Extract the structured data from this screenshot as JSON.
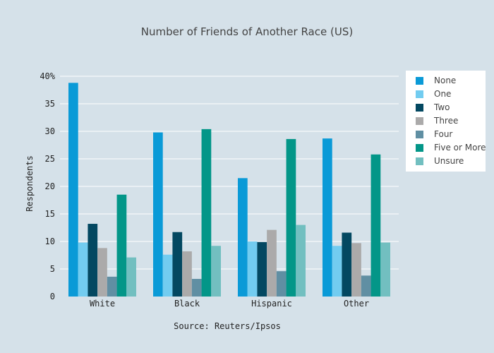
{
  "chart_data": {
    "type": "bar",
    "title": "Number of Friends of Another Race (US)",
    "xlabel": "Source: Reuters/Ipsos",
    "ylabel": "Respondents",
    "categories": [
      "White",
      "Black",
      "Hispanic",
      "Other"
    ],
    "ylim": [
      0,
      40
    ],
    "yticks": [
      {
        "value": 0,
        "label": "0"
      },
      {
        "value": 5,
        "label": "5"
      },
      {
        "value": 10,
        "label": "10"
      },
      {
        "value": 15,
        "label": "15"
      },
      {
        "value": 20,
        "label": "20"
      },
      {
        "value": 25,
        "label": "25"
      },
      {
        "value": 30,
        "label": "30"
      },
      {
        "value": 35,
        "label": "35"
      },
      {
        "value": 40,
        "label": "40%"
      }
    ],
    "grid": true,
    "legend_position": "top-right",
    "series": [
      {
        "name": "None",
        "color": "#0a9ad7",
        "values": [
          38.8,
          29.8,
          21.5,
          28.7
        ]
      },
      {
        "name": "One",
        "color": "#72ccf0",
        "values": [
          9.8,
          7.6,
          10.0,
          9.2
        ]
      },
      {
        "name": "Two",
        "color": "#034861",
        "values": [
          13.2,
          11.7,
          9.9,
          11.6
        ]
      },
      {
        "name": "Three",
        "color": "#abaaaa",
        "values": [
          8.8,
          8.2,
          12.1,
          9.7
        ]
      },
      {
        "name": "Four",
        "color": "#608fa3",
        "values": [
          3.6,
          3.2,
          4.6,
          3.8
        ]
      },
      {
        "name": "Five or More",
        "color": "#039688",
        "values": [
          18.5,
          30.4,
          28.6,
          25.8
        ]
      },
      {
        "name": "Unsure",
        "color": "#72bfc0",
        "values": [
          7.1,
          9.2,
          13.0,
          9.8
        ]
      }
    ]
  }
}
